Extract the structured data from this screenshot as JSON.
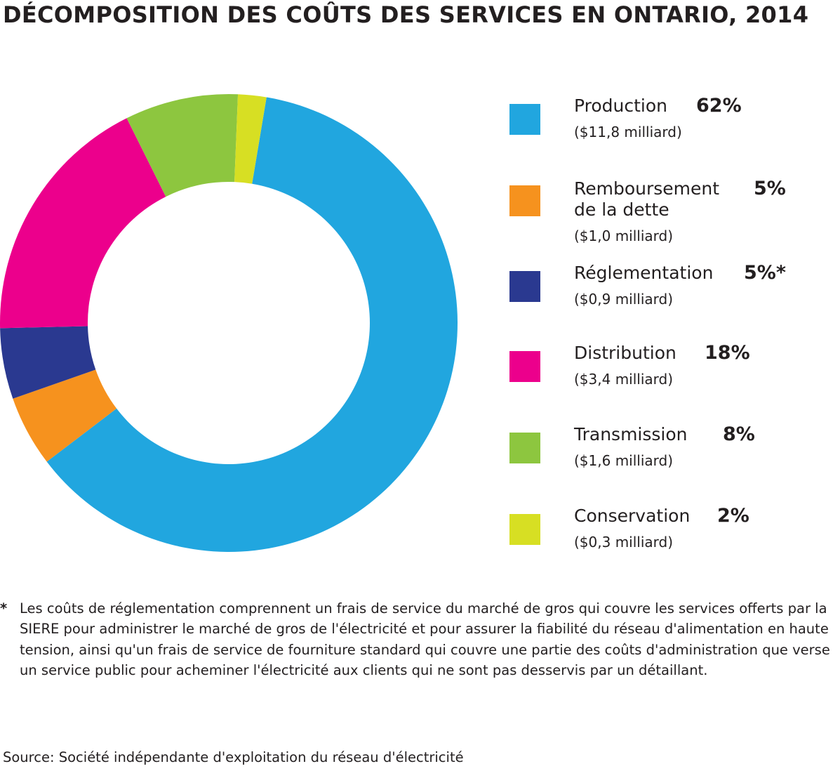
{
  "title": "DÉCOMPOSITION DES COÛTS DES SERVICES EN ONTARIO, 2014",
  "chart_data": {
    "type": "pie",
    "variant": "donut",
    "title": "DÉCOMPOSITION DES COÛTS DES SERVICES EN ONTARIO, 2014",
    "legend_position": "right",
    "slices": [
      {
        "label": "Production",
        "percent": 62,
        "pct_label": "62%",
        "amount": "($11,8 milliard)",
        "value": 11.8,
        "color": "#21a6df"
      },
      {
        "label": "Remboursement\nde la dette",
        "percent": 5,
        "pct_label": "5%",
        "amount": "($1,0 milliard)",
        "value": 1.0,
        "color": "#f6921e"
      },
      {
        "label": "Réglementation",
        "percent": 5,
        "pct_label": "5%*",
        "amount": "($0,9 milliard)",
        "value": 0.9,
        "color": "#2a3990"
      },
      {
        "label": "Distribution",
        "percent": 18,
        "pct_label": "18%",
        "amount": "($3,4 milliard)",
        "value": 3.4,
        "color": "#ec008c"
      },
      {
        "label": "Transmission",
        "percent": 8,
        "pct_label": "8%",
        "amount": "($1,6 milliard)",
        "value": 1.6,
        "color": "#8dc63f"
      },
      {
        "label": "Conservation",
        "percent": 2,
        "pct_label": "2%",
        "amount": "($0,3 milliard)",
        "value": 0.3,
        "color": "#d7df23"
      }
    ]
  },
  "footnote": {
    "marker": "*",
    "text": "Les coûts de réglementation comprennent un frais de service du marché de gros qui couvre les services offerts par la SIERE pour administrer le marché de gros de l'électricité et pour assurer la fiabilité du réseau d'alimentation en haute tension, ainsi qu'un frais de service de fourniture standard qui couvre une partie des coûts d'administration que verse un service public pour acheminer l'électricité aux clients qui ne sont pas desservis par un détaillant."
  },
  "source": "Source: Société indépendante d'exploitation du réseau d'électricité"
}
